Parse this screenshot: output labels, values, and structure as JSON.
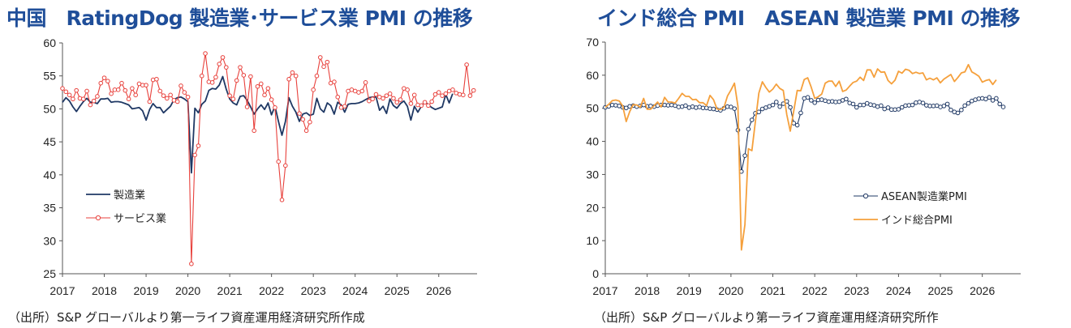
{
  "charts": [
    {
      "title": "中国　RatingDog 製造業･サービス業 PMI の推移",
      "source": "（出所）S&P グローバルより第一ライフ資産運用経済研究所作成"
    },
    {
      "title": "インド総合 PMI　ASEAN 製造業 PMI の推移",
      "source": "（出所）S&P グローバルより第一ライフ資産運用経済研究所作"
    }
  ],
  "chart_data": [
    {
      "type": "line",
      "title": "中国　RatingDog 製造業･サービス業 PMI の推移",
      "x_start": "2017-01",
      "x_ticks": [
        "2017",
        "2018",
        "2019",
        "2020",
        "2021",
        "2022",
        "2023",
        "2024",
        "2025",
        "2026"
      ],
      "y_ticks": [
        "25",
        "30",
        "35",
        "40",
        "45",
        "50",
        "55",
        "60"
      ],
      "ylim": [
        25,
        60
      ],
      "grid": false,
      "legend_position": "center-left",
      "series": [
        {
          "name": "製造業",
          "color": "#1f3864",
          "marker": "none",
          "values": [
            51.0,
            51.7,
            51.2,
            50.3,
            49.6,
            50.4,
            51.1,
            51.6,
            51.0,
            51.0,
            50.8,
            51.5,
            51.5,
            51.6,
            51.0,
            51.1,
            51.1,
            51.0,
            50.8,
            50.6,
            50.0,
            50.1,
            50.2,
            49.7,
            48.3,
            49.9,
            50.8,
            50.2,
            50.2,
            49.4,
            49.9,
            50.4,
            51.4,
            51.7,
            51.8,
            51.5,
            51.1,
            40.3,
            50.1,
            49.4,
            50.7,
            51.2,
            52.8,
            53.1,
            53.0,
            53.6,
            54.9,
            53.0,
            51.5,
            50.9,
            50.6,
            51.9,
            52.0,
            51.3,
            50.3,
            49.2,
            50.0,
            50.6,
            49.9,
            50.9,
            49.1,
            50.4,
            48.1,
            46.0,
            48.1,
            51.7,
            50.4,
            49.5,
            48.1,
            49.2,
            49.4,
            49.0,
            49.2,
            51.6,
            50.0,
            49.5,
            50.9,
            50.5,
            49.2,
            51.0,
            50.6,
            49.5,
            50.7,
            50.8,
            50.8,
            50.9,
            51.1,
            51.4,
            51.7,
            51.8,
            51.8,
            49.8,
            50.4,
            49.3,
            51.5,
            50.5,
            50.1,
            50.8,
            51.2,
            50.4,
            48.3,
            50.4,
            49.5,
            50.4,
            51.1,
            50.6,
            50.2,
            49.9,
            50.1,
            50.3,
            52.2,
            50.9,
            52.3
          ]
        },
        {
          "name": "サービス業",
          "color": "#e8413c",
          "marker": "open-circle",
          "values": [
            53.1,
            52.6,
            52.1,
            51.5,
            52.8,
            51.6,
            51.5,
            52.7,
            50.6,
            51.2,
            51.9,
            53.9,
            54.7,
            54.2,
            52.3,
            52.9,
            52.9,
            53.9,
            52.8,
            51.5,
            53.1,
            52.1,
            53.8,
            53.6,
            53.6,
            51.1,
            54.4,
            54.5,
            52.7,
            52.0,
            51.6,
            52.1,
            51.3,
            51.1,
            53.5,
            52.5,
            51.8,
            26.5,
            43.0,
            44.4,
            55.0,
            58.4,
            54.1,
            54.0,
            54.8,
            56.8,
            57.8,
            56.3,
            52.0,
            51.5,
            54.3,
            56.3,
            55.1,
            50.3,
            54.9,
            46.7,
            53.4,
            53.8,
            52.1,
            53.1,
            51.4,
            50.2,
            42.0,
            36.2,
            41.4,
            54.5,
            55.5,
            55.0,
            49.3,
            48.4,
            46.7,
            48.0,
            52.9,
            55.0,
            57.8,
            56.4,
            57.1,
            53.9,
            54.1,
            51.8,
            50.2,
            50.4,
            52.7,
            52.9,
            52.7,
            52.5,
            52.7,
            54.0,
            51.2,
            51.5,
            52.2,
            51.8,
            51.6,
            52.0,
            52.3,
            51.6,
            51.0,
            51.4,
            53.1,
            52.9,
            50.8,
            52.1,
            50.6,
            50.5,
            51.0,
            50.5,
            51.1,
            52.2,
            52.5,
            52.0,
            52.3,
            52.7,
            52.9,
            52.4,
            52.2,
            52.1,
            56.7,
            52.0,
            52.8
          ]
        }
      ]
    },
    {
      "type": "line",
      "title": "インド総合 PMI　ASEAN 製造業 PMI の推移",
      "x_start": "2017-01",
      "x_ticks": [
        "2017",
        "2018",
        "2019",
        "2020",
        "2021",
        "2022",
        "2023",
        "2024",
        "2025",
        "2026"
      ],
      "y_ticks": [
        "0",
        "10",
        "20",
        "30",
        "40",
        "50",
        "60",
        "70"
      ],
      "ylim": [
        0,
        70
      ],
      "grid": false,
      "legend_position": "center-right",
      "series": [
        {
          "name": "ASEAN製造業PMI",
          "color": "#1f3864",
          "marker": "open-circle",
          "values": [
            50.3,
            50.6,
            51.0,
            50.9,
            50.7,
            50.3,
            50.1,
            50.6,
            50.8,
            50.5,
            50.7,
            51.0,
            50.6,
            50.7,
            50.5,
            50.8,
            51.0,
            51.0,
            50.9,
            51.0,
            50.8,
            50.4,
            50.5,
            50.8,
            50.2,
            50.5,
            50.2,
            50.4,
            50.1,
            50.1,
            49.9,
            49.8,
            49.6,
            49.4,
            50.0,
            50.5,
            50.4,
            49.9,
            43.4,
            30.9,
            35.7,
            43.7,
            46.5,
            48.5,
            48.9,
            49.8,
            50.2,
            50.6,
            51.0,
            51.9,
            50.5,
            51.4,
            52.1,
            50.3,
            45.5,
            44.9,
            48.6,
            53.0,
            53.3,
            52.4,
            51.7,
            52.5,
            52.6,
            52.3,
            52.0,
            52.1,
            51.9,
            52.0,
            52.4,
            52.8,
            51.6,
            51.3,
            50.3,
            51.0,
            51.0,
            51.5,
            51.1,
            50.9,
            50.5,
            50.8,
            49.8,
            50.2,
            49.6,
            49.6,
            49.7,
            50.3,
            50.8,
            50.9,
            51.0,
            51.7,
            51.9,
            51.6,
            50.9,
            50.7,
            50.7,
            50.8,
            50.4,
            50.7,
            51.3,
            49.5,
            48.9,
            48.6,
            49.5,
            50.8,
            51.5,
            52.2,
            52.6,
            52.9,
            53.0,
            52.8,
            53.3,
            52.4,
            53.0,
            51.3,
            50.4
          ]
        },
        {
          "name": "インド総合PMI",
          "color": "#f5a03c",
          "marker": "none",
          "values": [
            50.3,
            51.2,
            52.3,
            52.5,
            52.2,
            50.7,
            46.0,
            49.0,
            51.1,
            51.0,
            50.3,
            53.0,
            49.7,
            49.7,
            50.8,
            51.9,
            50.4,
            53.3,
            51.9,
            51.9,
            51.6,
            53.0,
            54.5,
            53.6,
            53.6,
            52.6,
            52.7,
            51.7,
            51.7,
            50.8,
            53.9,
            52.6,
            49.8,
            49.6,
            50.3,
            53.7,
            55.5,
            57.6,
            50.6,
            7.2,
            14.8,
            37.8,
            37.2,
            46.0,
            54.6,
            58.0,
            56.3,
            54.9,
            55.8,
            57.3,
            56.0,
            55.4,
            48.1,
            43.1,
            49.2,
            55.4,
            55.3,
            58.7,
            59.2,
            56.4,
            53.0,
            53.5,
            54.3,
            57.6,
            58.2,
            58.2,
            56.6,
            58.2,
            55.1,
            55.5,
            56.7,
            57.8,
            58.2,
            59.4,
            58.4,
            61.6,
            61.6,
            59.4,
            61.9,
            60.9,
            61.0,
            58.4,
            57.4,
            58.5,
            61.2,
            60.6,
            61.8,
            61.5,
            60.5,
            60.9,
            60.5,
            60.7,
            58.6,
            59.1,
            58.6,
            59.2,
            57.7,
            58.8,
            59.5,
            60.2,
            58.1,
            59.3,
            60.7,
            61.0,
            63.2,
            61.0,
            60.4,
            59.7,
            57.9,
            58.4,
            58.7,
            57.2,
            58.6
          ]
        }
      ]
    }
  ]
}
